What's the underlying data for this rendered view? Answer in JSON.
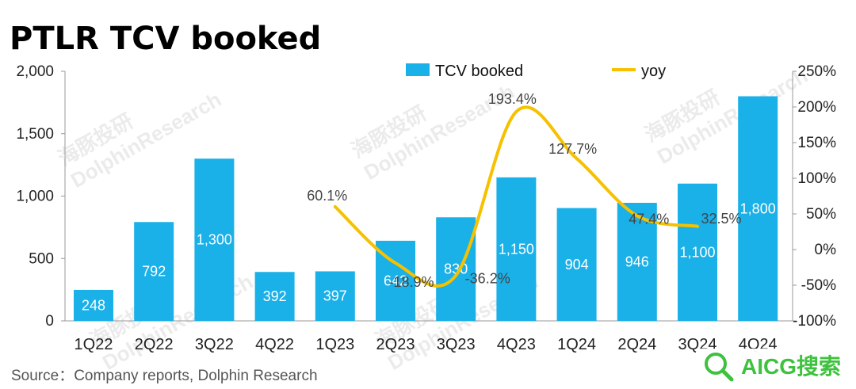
{
  "chart_data": {
    "type": "bar",
    "title": "PTLR TCV booked",
    "categories": [
      "1Q22",
      "2Q22",
      "3Q22",
      "4Q22",
      "1Q23",
      "2Q23",
      "3Q23",
      "4Q23",
      "1Q24",
      "2Q24",
      "3Q24",
      "4Q24"
    ],
    "series": [
      {
        "name": "TCV booked",
        "type": "bar",
        "axis": "left",
        "color": "#1ab0e8",
        "values": [
          248,
          792,
          1300,
          392,
          397,
          642,
          830,
          1150,
          904,
          946,
          1100,
          1800
        ],
        "labels": [
          "248",
          "792",
          "1,300",
          "392",
          "397",
          "642",
          "830",
          "1,150",
          "904",
          "946",
          "1,100",
          "1,800"
        ]
      },
      {
        "name": "yoy",
        "type": "line",
        "axis": "right",
        "color": "#f5c100",
        "values": [
          null,
          null,
          null,
          null,
          60.1,
          -18.9,
          -36.2,
          193.4,
          127.7,
          47.4,
          32.5,
          null
        ],
        "labels": [
          null,
          null,
          null,
          null,
          "60.1%",
          "-18.9%",
          "-36.2%",
          "193.4%",
          "127.7%",
          "47.4%",
          "32.5%",
          null
        ]
      }
    ],
    "y_left": {
      "min": 0,
      "max": 2000,
      "ticks": [
        0,
        500,
        1000,
        1500,
        2000
      ],
      "tick_labels": [
        "0",
        "500",
        "1,000",
        "1,500",
        "2,000"
      ]
    },
    "y_right": {
      "min": -100,
      "max": 250,
      "ticks": [
        -100,
        -50,
        0,
        50,
        100,
        150,
        200,
        250
      ],
      "tick_labels": [
        "-100%",
        "-50%",
        "0%",
        "50%",
        "100%",
        "150%",
        "200%",
        "250%"
      ]
    },
    "grid": false,
    "legend_position": "top-right"
  },
  "source": "Source：Company reports, Dolphin Research",
  "watermark": [
    "海豚投研",
    "DolphinResearch"
  ],
  "badge": "AICG搜索"
}
